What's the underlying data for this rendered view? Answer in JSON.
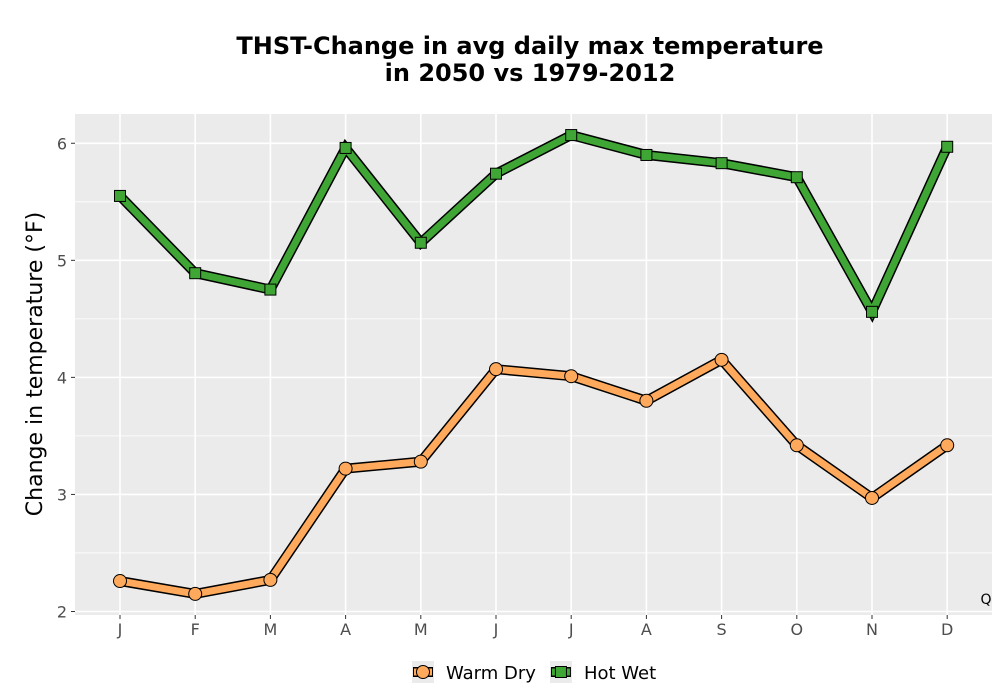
{
  "chart_data": {
    "type": "line",
    "title_line1": "THST-Change in avg daily max temperature",
    "title_line2": "in 2050 vs 1979-2012",
    "xlabel": "",
    "ylabel": "Change in temperature (°F)",
    "categories": [
      "J",
      "F",
      "M",
      "A",
      "M",
      "J",
      "J",
      "A",
      "S",
      "O",
      "N",
      "D"
    ],
    "yticks": [
      "2",
      "3",
      "4",
      "5",
      "6"
    ],
    "ylim": [
      1.97,
      6.25
    ],
    "grid": true,
    "legend_position": "bottom",
    "corner_label": "Q",
    "series": [
      {
        "name": "Warm Dry",
        "color": "#ffa95c",
        "marker": "circle",
        "values": [
          2.26,
          2.15,
          2.27,
          3.22,
          3.28,
          4.07,
          4.01,
          3.8,
          4.15,
          3.42,
          2.97,
          3.42
        ]
      },
      {
        "name": "Hot Wet",
        "color": "#3fa535",
        "marker": "square",
        "values": [
          5.55,
          4.89,
          4.75,
          5.96,
          5.15,
          5.74,
          6.07,
          5.9,
          5.83,
          5.71,
          4.56,
          5.97
        ]
      }
    ]
  }
}
